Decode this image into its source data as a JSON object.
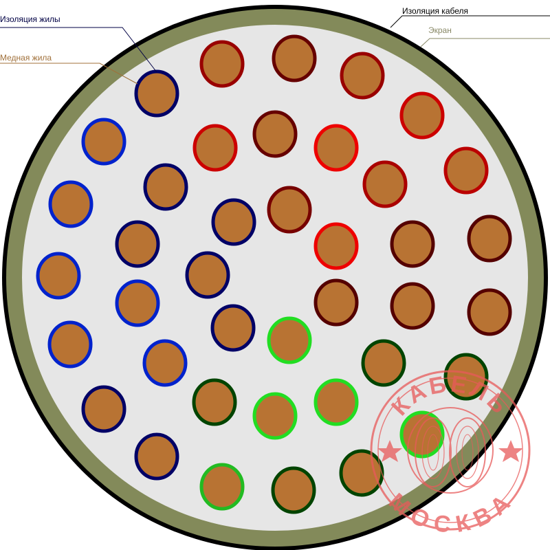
{
  "labels": {
    "core_insulation": {
      "text": "Изоляция жилы",
      "color": "#000044"
    },
    "copper_core": {
      "text": "Медная жила",
      "color": "#a0703a"
    },
    "cable_insulation": {
      "text": "Изоляция кабеля",
      "color": "#000000"
    },
    "screen": {
      "text": "Экран",
      "color": "#888866"
    }
  },
  "colors": {
    "sheath": "#000000",
    "screen": "#838a5a",
    "filler": "#e6e6e6",
    "copper": "#b87333",
    "stamp": "#e85a5a"
  },
  "stamp": {
    "top_text": "КАБЕЛЬ",
    "bottom_text": "МОСКВА"
  },
  "conductors": [
    {
      "insulation": "#000066"
    },
    {
      "insulation": "#000066"
    },
    {
      "insulation": "#000066"
    },
    {
      "insulation": "#000066"
    },
    {
      "insulation": "#000066"
    },
    {
      "insulation": "#000066"
    },
    {
      "insulation": "#000066"
    },
    {
      "insulation": "#000066"
    },
    {
      "insulation": "#0022cc"
    },
    {
      "insulation": "#0022cc"
    },
    {
      "insulation": "#0022cc"
    },
    {
      "insulation": "#0022cc"
    },
    {
      "insulation": "#0022cc"
    },
    {
      "insulation": "#0022cc"
    },
    {
      "insulation": "#990000"
    },
    {
      "insulation": "#660000"
    },
    {
      "insulation": "#990000"
    },
    {
      "insulation": "#cc0000"
    },
    {
      "insulation": "#cc0000"
    },
    {
      "insulation": "#660000"
    },
    {
      "insulation": "#ee0000"
    },
    {
      "insulation": "#aa0000"
    },
    {
      "insulation": "#bb0000"
    },
    {
      "insulation": "#770000"
    },
    {
      "insulation": "#ee0000"
    },
    {
      "insulation": "#550000"
    },
    {
      "insulation": "#550000"
    },
    {
      "insulation": "#550000"
    },
    {
      "insulation": "#550000"
    },
    {
      "insulation": "#550000"
    },
    {
      "insulation": "#22dd22"
    },
    {
      "insulation": "#004400"
    },
    {
      "insulation": "#004400"
    },
    {
      "insulation": "#004400"
    },
    {
      "insulation": "#22dd22"
    },
    {
      "insulation": "#22dd22"
    },
    {
      "insulation": "#22dd22"
    },
    {
      "insulation": "#22bb22"
    },
    {
      "insulation": "#004400"
    },
    {
      "insulation": "#004400"
    }
  ]
}
